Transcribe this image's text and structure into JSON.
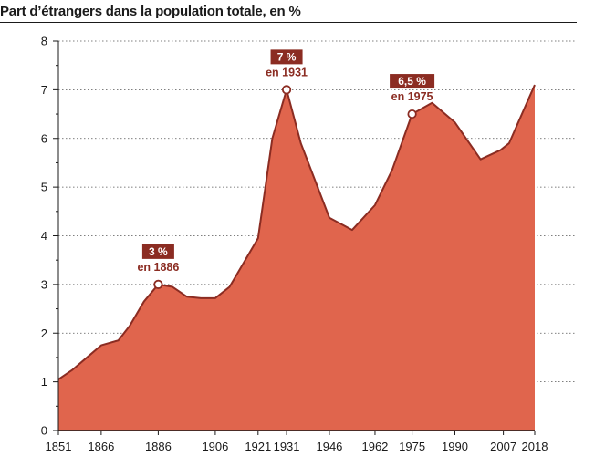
{
  "chart_data": {
    "type": "area",
    "title": "Part d’étrangers dans la population totale, en %",
    "xlabel": "",
    "ylabel": "",
    "xlim": [
      1851,
      2018
    ],
    "ylim": [
      0,
      8
    ],
    "y_ticks": [
      0,
      1,
      2,
      3,
      4,
      5,
      6,
      7,
      8
    ],
    "x_ticks": [
      1851,
      1866,
      1886,
      1906,
      1921,
      1931,
      1946,
      1962,
      1975,
      1990,
      2007,
      2018
    ],
    "series": [
      {
        "name": "Part d’étrangers",
        "x": [
          1851,
          1856,
          1861,
          1866,
          1872,
          1876,
          1881,
          1886,
          1891,
          1896,
          1901,
          1906,
          1911,
          1921,
          1926,
          1931,
          1936,
          1946,
          1954,
          1962,
          1968,
          1975,
          1982,
          1990,
          1999,
          2006,
          2009,
          2018
        ],
        "values": [
          1.05,
          1.25,
          1.5,
          1.75,
          1.85,
          2.15,
          2.65,
          3.0,
          2.95,
          2.75,
          2.72,
          2.72,
          2.95,
          3.95,
          6.0,
          7.0,
          5.9,
          4.37,
          4.12,
          4.63,
          5.35,
          6.5,
          6.73,
          6.33,
          5.57,
          5.76,
          5.9,
          7.1
        ]
      }
    ],
    "annotations": [
      {
        "year": 1886,
        "value": 3.0,
        "label": "3 %",
        "sublabel": "en 1886"
      },
      {
        "year": 1931,
        "value": 7.0,
        "label": "7 %",
        "sublabel": "en 1931"
      },
      {
        "year": 1975,
        "value": 6.5,
        "label": "6,5 %",
        "sublabel": "en 1975"
      }
    ],
    "colors": {
      "fill": "#e0654d",
      "line": "#8b2c22",
      "label_box": "#8b2c22",
      "gridline": "#555555",
      "axis": "#1a1a1a"
    },
    "grid": true
  }
}
